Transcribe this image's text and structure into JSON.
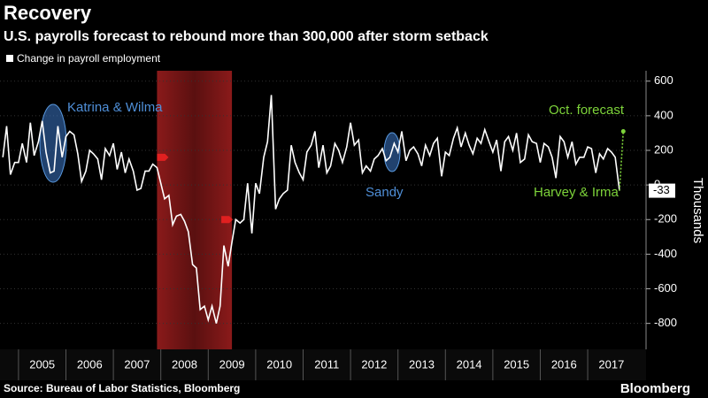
{
  "chart_data": {
    "type": "line",
    "title": "Recovery",
    "subtitle": "U.S. payrolls forecast to rebound more than 300,000 after storm setback",
    "y_label": "Thousands",
    "source": "Source: Bureau of Labor Statistics, Bloomberg",
    "brand": "Bloomberg",
    "xlim": [
      2004.61,
      2018.23
    ],
    "ylim": [
      -950,
      660
    ],
    "yticks": [
      -800,
      -600,
      -400,
      -200,
      0,
      200,
      400,
      600
    ],
    "xticks": [
      {
        "value": 2005,
        "label": "2005"
      },
      {
        "value": 2006,
        "label": "2006"
      },
      {
        "value": 2007,
        "label": "2007"
      },
      {
        "value": 2008,
        "label": "2008"
      },
      {
        "value": 2009,
        "label": "2009"
      },
      {
        "value": 2010,
        "label": "2010"
      },
      {
        "value": 2011,
        "label": "2011"
      },
      {
        "value": 2012,
        "label": "2012"
      },
      {
        "value": 2013,
        "label": "2013"
      },
      {
        "value": 2014,
        "label": "2014"
      },
      {
        "value": 2015,
        "label": "2015"
      },
      {
        "value": 2016,
        "label": "2016"
      },
      {
        "value": 2017,
        "label": "2017"
      }
    ],
    "grid": true,
    "recession": [
      2007.92,
      2009.5
    ],
    "series": [
      {
        "name": "Change in payroll employment",
        "color": "#ffffff",
        "style": "solid",
        "x": [
          2004.67,
          2004.75,
          2004.83,
          2004.92,
          2005.0,
          2005.08,
          2005.17,
          2005.25,
          2005.33,
          2005.42,
          2005.5,
          2005.58,
          2005.67,
          2005.75,
          2005.83,
          2005.92,
          2006.0,
          2006.08,
          2006.17,
          2006.25,
          2006.33,
          2006.42,
          2006.5,
          2006.58,
          2006.67,
          2006.75,
          2006.83,
          2006.92,
          2007.0,
          2007.08,
          2007.17,
          2007.25,
          2007.33,
          2007.42,
          2007.5,
          2007.58,
          2007.67,
          2007.75,
          2007.83,
          2007.92,
          2008.0,
          2008.08,
          2008.17,
          2008.25,
          2008.33,
          2008.42,
          2008.5,
          2008.58,
          2008.67,
          2008.75,
          2008.83,
          2008.92,
          2009.0,
          2009.08,
          2009.17,
          2009.25,
          2009.33,
          2009.42,
          2009.5,
          2009.58,
          2009.67,
          2009.75,
          2009.83,
          2009.92,
          2010.0,
          2010.08,
          2010.17,
          2010.25,
          2010.33,
          2010.42,
          2010.5,
          2010.58,
          2010.67,
          2010.75,
          2010.83,
          2010.92,
          2011.0,
          2011.08,
          2011.17,
          2011.25,
          2011.33,
          2011.42,
          2011.5,
          2011.58,
          2011.67,
          2011.75,
          2011.83,
          2011.92,
          2012.0,
          2012.08,
          2012.17,
          2012.25,
          2012.33,
          2012.42,
          2012.5,
          2012.58,
          2012.67,
          2012.75,
          2012.83,
          2012.92,
          2013.0,
          2013.08,
          2013.17,
          2013.25,
          2013.33,
          2013.42,
          2013.5,
          2013.58,
          2013.67,
          2013.75,
          2013.83,
          2013.92,
          2014.0,
          2014.08,
          2014.17,
          2014.25,
          2014.33,
          2014.42,
          2014.5,
          2014.58,
          2014.67,
          2014.75,
          2014.83,
          2014.92,
          2015.0,
          2015.08,
          2015.17,
          2015.25,
          2015.33,
          2015.42,
          2015.5,
          2015.58,
          2015.67,
          2015.75,
          2015.83,
          2015.92,
          2016.0,
          2016.08,
          2016.17,
          2016.25,
          2016.33,
          2016.42,
          2016.5,
          2016.58,
          2016.67,
          2016.75,
          2016.83,
          2016.92,
          2017.0,
          2017.08,
          2017.17,
          2017.25,
          2017.33,
          2017.42,
          2017.5,
          2017.58,
          2017.67
        ],
        "values": [
          160,
          340,
          60,
          130,
          130,
          240,
          130,
          360,
          170,
          250,
          370,
          190,
          70,
          80,
          340,
          160,
          280,
          310,
          290,
          180,
          20,
          80,
          200,
          180,
          150,
          30,
          210,
          170,
          240,
          90,
          190,
          70,
          150,
          80,
          -30,
          -20,
          80,
          80,
          120,
          100,
          10,
          -80,
          -60,
          -230,
          -180,
          -170,
          -210,
          -270,
          -460,
          -480,
          -720,
          -700,
          -780,
          -700,
          -800,
          -700,
          -350,
          -470,
          -330,
          -200,
          -220,
          -200,
          10,
          -280,
          10,
          -50,
          160,
          250,
          520,
          -140,
          -80,
          -50,
          -30,
          230,
          130,
          70,
          30,
          190,
          230,
          310,
          100,
          230,
          70,
          110,
          240,
          200,
          130,
          220,
          360,
          230,
          260,
          70,
          110,
          80,
          150,
          170,
          210,
          140,
          160,
          240,
          190,
          310,
          140,
          200,
          220,
          180,
          110,
          230,
          170,
          240,
          270,
          50,
          190,
          170,
          270,
          330,
          220,
          300,
          230,
          180,
          270,
          240,
          320,
          250,
          190,
          260,
          80,
          250,
          280,
          200,
          300,
          130,
          150,
          290,
          250,
          240,
          130,
          240,
          220,
          160,
          40,
          280,
          250,
          160,
          250,
          120,
          160,
          160,
          220,
          210,
          70,
          180,
          150,
          210,
          190,
          160,
          -33
        ]
      },
      {
        "color": "#7dd33a",
        "style": "dotted",
        "x": [
          2017.67,
          2017.75
        ],
        "values": [
          -33,
          310
        ]
      }
    ],
    "last_label": -33,
    "annotations": [
      {
        "text": "Katrina & Wilma",
        "color": "#4f8fd8"
      },
      {
        "text": "Sandy",
        "color": "#4f8fd8"
      },
      {
        "text": "Oct. forecast",
        "color": "#7dd33a"
      },
      {
        "text": "Harvey & Irma",
        "color": "#7dd33a"
      }
    ]
  }
}
